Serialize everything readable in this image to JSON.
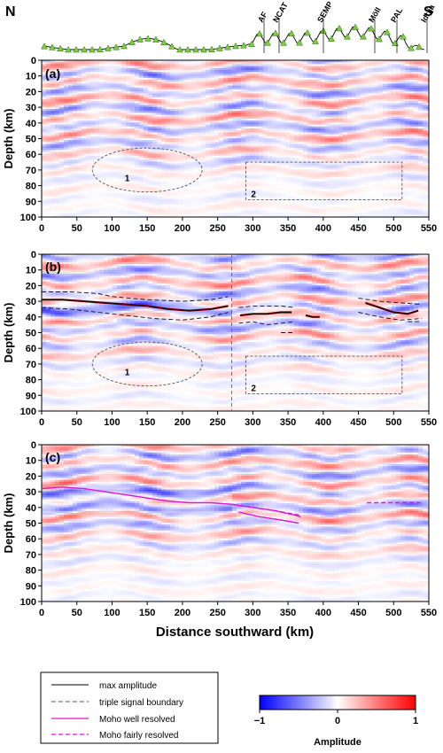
{
  "figure": {
    "north_label": "N",
    "south_label": "S",
    "faults": [
      "AF",
      "NCAT",
      "SEMP",
      "MöII",
      "PAL",
      "Idrija"
    ],
    "fault_x": [
      298,
      315,
      365,
      423,
      448,
      482
    ]
  },
  "chart_data": [
    {
      "type": "heatmap",
      "panel": "(a)",
      "xlabel": "",
      "ylabel": "Depth (km)",
      "xlim": [
        0,
        550
      ],
      "ylim": [
        0,
        100
      ],
      "xticks": [
        0,
        50,
        100,
        150,
        200,
        250,
        300,
        350,
        400,
        450,
        500,
        550
      ],
      "yticks": [
        0,
        10,
        20,
        30,
        40,
        50,
        60,
        70,
        80,
        90,
        100
      ],
      "annotations": [
        {
          "label": "1",
          "shape": "ellipse",
          "cx": 150,
          "cy": 70,
          "rx": 78,
          "ry": 14
        },
        {
          "label": "2",
          "shape": "rect",
          "x0": 290,
          "x1": 512,
          "y0": 65,
          "y1": 89
        }
      ]
    },
    {
      "type": "heatmap",
      "panel": "(b)",
      "xlabel": "",
      "ylabel": "Depth (km)",
      "xlim": [
        0,
        550
      ],
      "ylim": [
        0,
        100
      ],
      "xticks": [
        0,
        50,
        100,
        150,
        200,
        250,
        300,
        350,
        400,
        450,
        500,
        550
      ],
      "yticks": [
        0,
        10,
        20,
        30,
        40,
        50,
        60,
        70,
        80,
        90,
        100
      ],
      "vertical_divider_x": 270,
      "annotations": [
        {
          "label": "1",
          "shape": "ellipse",
          "cx": 150,
          "cy": 70,
          "rx": 78,
          "ry": 14
        },
        {
          "label": "2",
          "shape": "rect",
          "x0": 290,
          "x1": 512,
          "y0": 65,
          "y1": 89
        }
      ],
      "max_amplitude": [
        [
          [
            0,
            29
          ],
          [
            30,
            29
          ],
          [
            60,
            30
          ],
          [
            90,
            31
          ],
          [
            120,
            32
          ],
          [
            150,
            33
          ],
          [
            180,
            35
          ],
          [
            210,
            36
          ],
          [
            240,
            35
          ],
          [
            265,
            33
          ]
        ],
        [
          [
            282,
            39
          ],
          [
            300,
            38
          ],
          [
            320,
            38
          ],
          [
            340,
            37
          ],
          [
            355,
            37
          ]
        ],
        [
          [
            375,
            39
          ],
          [
            385,
            40
          ],
          [
            395,
            40
          ]
        ],
        [
          [
            460,
            31
          ],
          [
            480,
            34
          ],
          [
            500,
            37
          ],
          [
            520,
            38
          ],
          [
            535,
            36
          ]
        ]
      ],
      "triple_signal_boundary": [
        [
          [
            0,
            24
          ],
          [
            40,
            24
          ],
          [
            80,
            25
          ],
          [
            100,
            27
          ],
          [
            150,
            29
          ],
          [
            200,
            30
          ],
          [
            240,
            29
          ],
          [
            265,
            27
          ]
        ],
        [
          [
            0,
            34
          ],
          [
            40,
            35
          ],
          [
            80,
            37
          ],
          [
            120,
            39
          ],
          [
            160,
            41
          ],
          [
            200,
            42
          ],
          [
            240,
            40
          ],
          [
            265,
            37
          ]
        ],
        [
          [
            280,
            34
          ],
          [
            300,
            33
          ],
          [
            320,
            33
          ],
          [
            340,
            33
          ],
          [
            360,
            34
          ]
        ],
        [
          [
            280,
            44
          ],
          [
            300,
            43
          ],
          [
            320,
            45
          ],
          [
            340,
            44
          ],
          [
            360,
            43
          ]
        ],
        [
          [
            340,
            50
          ],
          [
            360,
            50
          ]
        ],
        [
          [
            450,
            28
          ],
          [
            480,
            30
          ],
          [
            510,
            31
          ],
          [
            540,
            32
          ]
        ],
        [
          [
            450,
            37
          ],
          [
            480,
            40
          ],
          [
            510,
            42
          ],
          [
            540,
            41
          ]
        ],
        [
          [
            520,
            43
          ],
          [
            540,
            43
          ]
        ]
      ]
    },
    {
      "type": "heatmap",
      "panel": "(c)",
      "xlabel": "Distance southward (km)",
      "ylabel": "Depth (km)",
      "xlim": [
        0,
        550
      ],
      "ylim": [
        0,
        100
      ],
      "xticks": [
        0,
        50,
        100,
        150,
        200,
        250,
        300,
        350,
        400,
        450,
        500,
        550
      ],
      "yticks": [
        0,
        10,
        20,
        30,
        40,
        50,
        60,
        70,
        80,
        90,
        100
      ],
      "moho_well_resolved": [
        [
          [
            0,
            28
          ],
          [
            30,
            27
          ],
          [
            60,
            28
          ],
          [
            90,
            30
          ],
          [
            120,
            32
          ],
          [
            150,
            34
          ],
          [
            180,
            36
          ],
          [
            210,
            37
          ],
          [
            240,
            37
          ],
          [
            270,
            38
          ],
          [
            300,
            40
          ],
          [
            330,
            42
          ],
          [
            360,
            45
          ],
          [
            368,
            46
          ]
        ],
        [
          [
            280,
            43
          ],
          [
            310,
            46
          ],
          [
            340,
            48
          ],
          [
            365,
            50
          ]
        ]
      ],
      "moho_fairly_resolved": [
        [
          [
            270,
            38
          ],
          [
            300,
            40
          ],
          [
            330,
            42
          ],
          [
            368,
            45
          ]
        ],
        [
          [
            462,
            37
          ],
          [
            490,
            37
          ],
          [
            520,
            37
          ],
          [
            538,
            37
          ]
        ]
      ]
    }
  ],
  "legend": {
    "items": [
      {
        "label": "max amplitude",
        "style": "solid",
        "color": "#000000"
      },
      {
        "label": "triple signal boundary",
        "style": "dashed",
        "color": "#555555"
      },
      {
        "label": "Moho well resolved",
        "style": "solid",
        "color": "#d81ad0"
      },
      {
        "label": "Moho fairly resolved",
        "style": "dashed",
        "color": "#d81ad0"
      }
    ]
  },
  "colorbar": {
    "title": "Amplitude",
    "min_label": "−1",
    "mid_label": "0",
    "max_label": "1",
    "colors": [
      "#1a1aff",
      "#ffffff",
      "#ff1a1a"
    ]
  }
}
